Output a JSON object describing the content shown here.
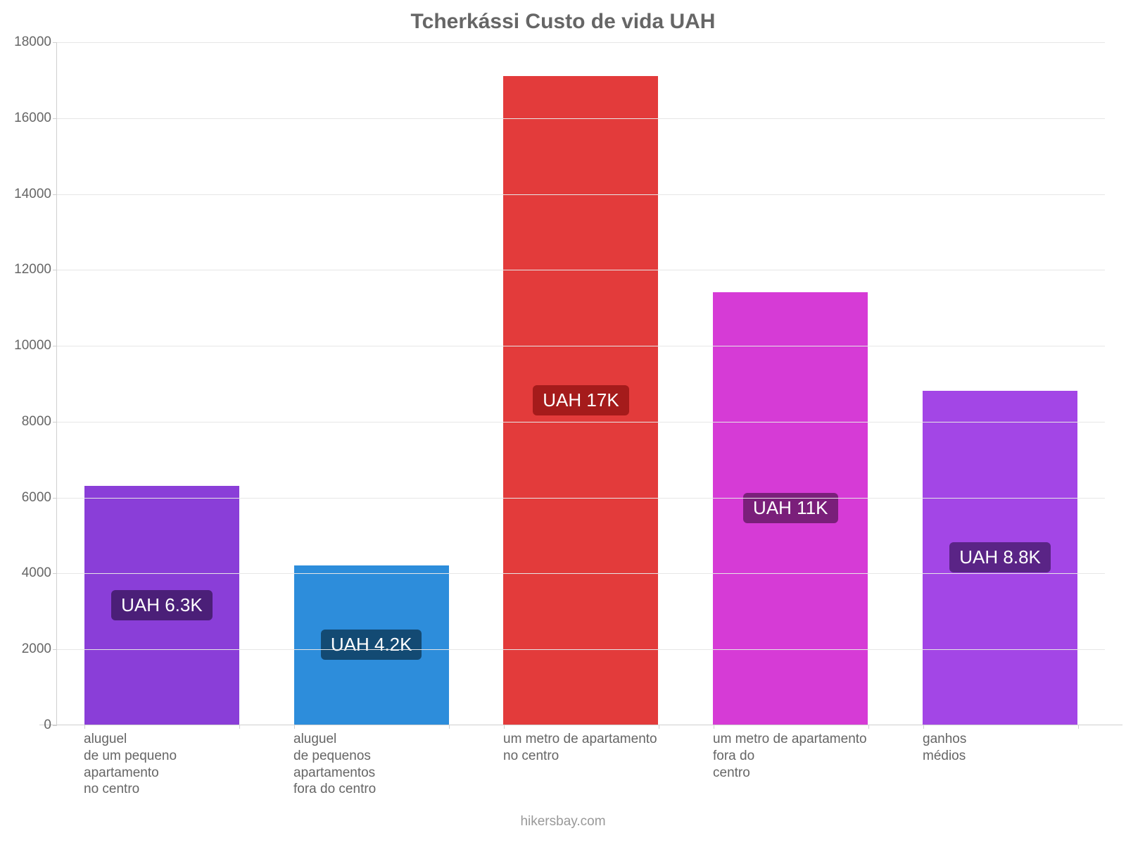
{
  "chart": {
    "type": "bar",
    "title": "Tcherkássi Custo de vida UAH",
    "title_color": "#666666",
    "title_fontsize": 30,
    "background_color": "#ffffff",
    "grid_color": "#e6e6e6",
    "axis_color": "#cfcfcf",
    "tick_color": "#666666",
    "tick_fontsize": 19,
    "y": {
      "min": 0,
      "max": 18000,
      "step": 2000,
      "ticks": [
        0,
        2000,
        4000,
        6000,
        8000,
        10000,
        12000,
        14000,
        16000,
        18000
      ]
    },
    "bars": [
      {
        "value": 6300,
        "color": "#8a3ed8",
        "label": "UAH 6.3K",
        "label_bg": "#4b1f78",
        "x_label": "aluguel\nde um pequeno\napartamento\nno centro"
      },
      {
        "value": 4200,
        "color": "#2d8ddb",
        "label": "UAH 4.2K",
        "label_bg": "#134a73",
        "x_label": "aluguel\nde pequenos\napartamentos\nfora do centro"
      },
      {
        "value": 17100,
        "color": "#e33b3b",
        "label": "UAH 17K",
        "label_bg": "#a51b1b",
        "x_label": "um metro de apartamento\nno centro"
      },
      {
        "value": 11400,
        "color": "#d63bd6",
        "label": "UAH 11K",
        "label_bg": "#7a1f7a",
        "x_label": "um metro de apartamento\nfora do\ncentro"
      },
      {
        "value": 8800,
        "color": "#a346e6",
        "label": "UAH 8.8K",
        "label_bg": "#5a2486",
        "x_label": "ganhos\nmédios"
      }
    ],
    "footer": "hikersbay.com",
    "footer_color": "#999999"
  }
}
